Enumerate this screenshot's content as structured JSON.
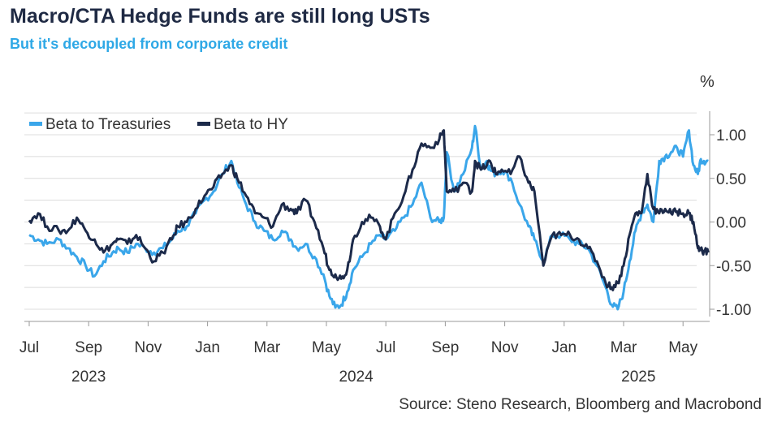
{
  "title": "Macro/CTA Hedge Funds are still long USTs",
  "subtitle": "But it's decoupled from corporate credit",
  "unit": "%",
  "source": "Source: Steno Research, Bloomberg and Macrobond",
  "colors": {
    "treasuries": "#3aa6ea",
    "hy": "#1c2a4a",
    "grid": "#dcdcdc",
    "axis": "#9a9a9a"
  },
  "chart_data": {
    "type": "line",
    "title": "Macro/CTA Hedge Funds are still long USTs",
    "ylabel": "%",
    "ylim": [
      -1.1,
      1.25
    ],
    "yticks": [
      1.0,
      0.5,
      0.0,
      -0.5,
      -1.0
    ],
    "ytick_labels": [
      "1.00",
      "0.50",
      "0.00",
      "-0.50",
      "-1.00"
    ],
    "x_range_months": [
      0,
      22.9
    ],
    "xticks": [
      {
        "label": "Jul",
        "m": 0
      },
      {
        "label": "Sep",
        "m": 2
      },
      {
        "label": "Nov",
        "m": 4
      },
      {
        "label": "Jan",
        "m": 6
      },
      {
        "label": "Mar",
        "m": 8
      },
      {
        "label": "May",
        "m": 10
      },
      {
        "label": "Jul",
        "m": 12
      },
      {
        "label": "Sep",
        "m": 14
      },
      {
        "label": "Nov",
        "m": 16
      },
      {
        "label": "Jan",
        "m": 18
      },
      {
        "label": "Mar",
        "m": 20
      },
      {
        "label": "May",
        "m": 22
      }
    ],
    "years": [
      {
        "label": "2023",
        "m": 2
      },
      {
        "label": "2024",
        "m": 11
      },
      {
        "label": "2025",
        "m": 20.5
      }
    ],
    "legend": [
      "Beta to Treasuries",
      "Beta to HY"
    ],
    "series": [
      {
        "name": "Beta to Treasuries",
        "x": [
          0,
          0.3,
          0.6,
          1.0,
          1.3,
          1.6,
          1.9,
          2.2,
          2.5,
          2.8,
          3.0,
          3.3,
          3.6,
          3.9,
          4.2,
          4.5,
          4.8,
          5.0,
          5.3,
          5.6,
          5.9,
          6.2,
          6.5,
          6.8,
          7.0,
          7.3,
          7.6,
          7.9,
          8.2,
          8.5,
          8.8,
          9.0,
          9.3,
          9.6,
          9.9,
          10.1,
          10.3,
          10.5,
          10.7,
          10.9,
          11.2,
          11.5,
          11.8,
          12.0,
          12.3,
          12.6,
          12.9,
          13.2,
          13.5,
          13.8,
          13.95,
          14.05,
          14.3,
          14.6,
          14.9,
          15.0,
          15.2,
          15.4,
          15.5,
          15.7,
          15.9,
          16.2,
          16.5,
          16.8,
          17.0,
          17.3,
          17.6,
          17.9,
          18.2,
          18.5,
          18.8,
          19.1,
          19.4,
          19.6,
          19.8,
          20.0,
          20.2,
          20.4,
          20.6,
          20.8,
          21.0,
          21.2,
          21.4,
          21.6,
          21.8,
          22.0,
          22.2,
          22.35,
          22.5,
          22.6,
          22.7,
          22.85
        ],
        "values": [
          -0.15,
          -0.2,
          -0.25,
          -0.2,
          -0.3,
          -0.4,
          -0.5,
          -0.62,
          -0.45,
          -0.35,
          -0.3,
          -0.35,
          -0.25,
          -0.3,
          -0.35,
          -0.3,
          -0.2,
          -0.1,
          -0.05,
          0.1,
          0.25,
          0.35,
          0.55,
          0.7,
          0.45,
          0.2,
          0.0,
          -0.1,
          -0.2,
          -0.1,
          -0.2,
          -0.3,
          -0.25,
          -0.4,
          -0.6,
          -0.85,
          -0.98,
          -0.95,
          -0.8,
          -0.55,
          -0.4,
          -0.25,
          -0.15,
          -0.2,
          -0.1,
          0.05,
          0.2,
          0.45,
          0.05,
          0.0,
          0.05,
          0.8,
          0.35,
          0.55,
          0.85,
          1.1,
          0.6,
          0.7,
          0.6,
          0.55,
          0.6,
          0.5,
          0.2,
          -0.05,
          -0.2,
          -0.45,
          -0.15,
          -0.15,
          -0.2,
          -0.25,
          -0.3,
          -0.5,
          -0.75,
          -0.95,
          -1.0,
          -0.8,
          -0.45,
          -0.1,
          0.1,
          0.2,
          0.0,
          0.7,
          0.75,
          0.8,
          0.85,
          0.75,
          1.05,
          0.65,
          0.55,
          0.72,
          0.7,
          0.7
        ]
      },
      {
        "name": "Beta to HY",
        "x": [
          0,
          0.3,
          0.6,
          1.0,
          1.3,
          1.6,
          1.9,
          2.2,
          2.5,
          2.8,
          3.0,
          3.3,
          3.6,
          3.9,
          4.2,
          4.5,
          4.8,
          5.0,
          5.3,
          5.6,
          5.9,
          6.2,
          6.5,
          6.8,
          7.0,
          7.3,
          7.6,
          7.9,
          8.2,
          8.5,
          8.8,
          9.0,
          9.3,
          9.6,
          9.9,
          10.1,
          10.3,
          10.5,
          10.7,
          10.9,
          11.2,
          11.5,
          11.8,
          12.0,
          12.3,
          12.6,
          12.9,
          13.2,
          13.5,
          13.8,
          13.95,
          14.05,
          14.3,
          14.6,
          14.9,
          15.0,
          15.2,
          15.4,
          15.5,
          15.7,
          15.9,
          16.2,
          16.5,
          16.8,
          17.0,
          17.3,
          17.6,
          17.9,
          18.2,
          18.5,
          18.8,
          19.1,
          19.4,
          19.6,
          19.8,
          20.0,
          20.2,
          20.4,
          20.6,
          20.8,
          21.0,
          21.2,
          21.4,
          21.6,
          21.8,
          22.0,
          22.2,
          22.35,
          22.5,
          22.6,
          22.7,
          22.85
        ],
        "values": [
          0.02,
          0.1,
          -0.05,
          -0.1,
          -0.1,
          0.05,
          -0.1,
          -0.2,
          -0.35,
          -0.25,
          -0.2,
          -0.25,
          -0.15,
          -0.3,
          -0.45,
          -0.35,
          -0.2,
          -0.05,
          0.0,
          0.15,
          0.3,
          0.4,
          0.55,
          0.65,
          0.5,
          0.3,
          0.1,
          0.05,
          -0.05,
          0.2,
          0.15,
          0.1,
          0.25,
          0.0,
          -0.3,
          -0.55,
          -0.6,
          -0.65,
          -0.55,
          -0.2,
          0.0,
          0.05,
          -0.05,
          -0.2,
          0.1,
          0.3,
          0.6,
          0.9,
          0.85,
          0.95,
          1.05,
          0.35,
          0.35,
          0.45,
          0.35,
          0.7,
          0.6,
          0.65,
          0.7,
          0.55,
          0.6,
          0.55,
          0.75,
          0.45,
          0.35,
          -0.5,
          -0.15,
          -0.15,
          -0.15,
          -0.2,
          -0.3,
          -0.45,
          -0.7,
          -0.75,
          -0.7,
          -0.5,
          -0.15,
          0.1,
          0.1,
          0.55,
          0.15,
          0.1,
          0.15,
          0.1,
          0.12,
          0.1,
          0.1,
          0.0,
          -0.3,
          -0.32,
          -0.33,
          -0.35
        ]
      }
    ]
  }
}
